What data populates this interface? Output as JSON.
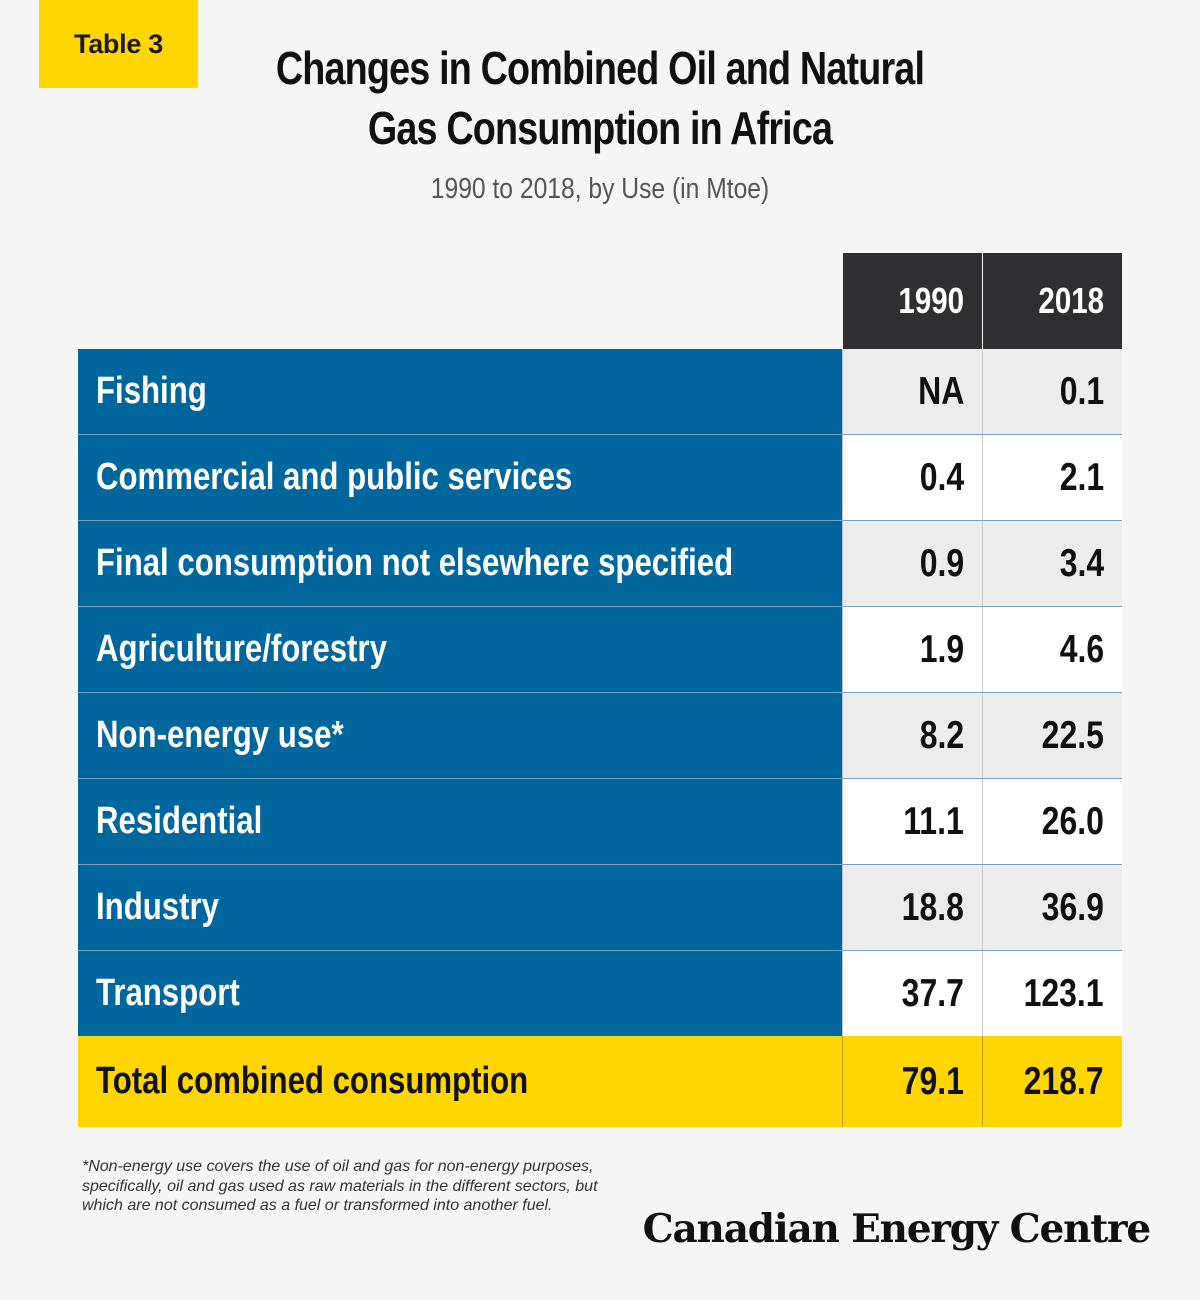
{
  "badge": "Table 3",
  "chart_data": {
    "type": "table",
    "title_line1": "Changes in Combined Oil and Natural",
    "title_line2": "Gas Consumption in Africa",
    "subtitle": "1990 to 2018, by Use (in Mtoe)",
    "columns": [
      "1990",
      "2018"
    ],
    "rows": [
      {
        "label": "Fishing",
        "v1990": "NA",
        "v2018": "0.1"
      },
      {
        "label": "Commercial and public services",
        "v1990": "0.4",
        "v2018": "2.1"
      },
      {
        "label": "Final consumption not elsewhere specified",
        "v1990": "0.9",
        "v2018": "3.4"
      },
      {
        "label": "Agriculture/forestry",
        "v1990": "1.9",
        "v2018": "4.6"
      },
      {
        "label": "Non-energy use*",
        "v1990": "8.2",
        "v2018": "22.5"
      },
      {
        "label": "Residential",
        "v1990": "11.1",
        "v2018": "26.0"
      },
      {
        "label": "Industry",
        "v1990": "18.8",
        "v2018": "36.9"
      },
      {
        "label": "Transport",
        "v1990": "37.7",
        "v2018": "123.1"
      }
    ],
    "total": {
      "label": "Total combined consumption",
      "v1990": "79.1",
      "v2018": "218.7"
    }
  },
  "footnote": "*Non-energy use covers the use of oil and gas for non-energy purposes, specifically, oil and gas used as raw materials in the different sectors, but which are not consumed as a fuel or transformed into another fuel.",
  "logo": "Canadian Energy Centre",
  "colors": {
    "accent": "#ffd600",
    "label_bg": "#00669e",
    "header_bg": "#2f2f31"
  }
}
